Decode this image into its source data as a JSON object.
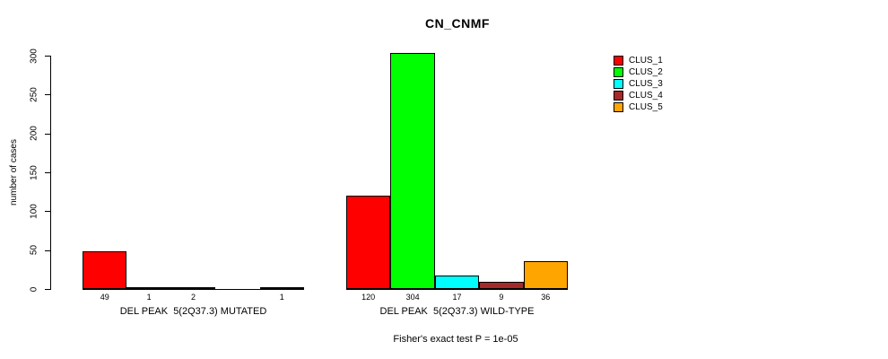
{
  "title": "CN_CNMF",
  "y_axis": {
    "label": "number of cases",
    "ticks": [
      0,
      50,
      100,
      150,
      200,
      250,
      300
    ]
  },
  "footer": "Fisher's exact test P = 1e-05",
  "legend": {
    "entries": [
      {
        "label": "CLUS_1",
        "color": "#ff0000"
      },
      {
        "label": "CLUS_2",
        "color": "#00ff00"
      },
      {
        "label": "CLUS_3",
        "color": "#00ffff"
      },
      {
        "label": "CLUS_4",
        "color": "#a52a2a"
      },
      {
        "label": "CLUS_5",
        "color": "#ffa500"
      }
    ]
  },
  "chart_data": {
    "type": "bar",
    "title": "CN_CNMF",
    "ylabel": "number of cases",
    "ylim": [
      0,
      300
    ],
    "yticks": [
      0,
      50,
      100,
      150,
      200,
      250,
      300
    ],
    "grid": false,
    "legend_position": "right",
    "series_names": [
      "CLUS_1",
      "CLUS_2",
      "CLUS_3",
      "CLUS_4",
      "CLUS_5"
    ],
    "series_colors": [
      "#ff0000",
      "#00ff00",
      "#00ffff",
      "#a52a2a",
      "#ffa500"
    ],
    "groups": [
      {
        "label": "DEL PEAK  5(2Q37.3) MUTATED",
        "values": [
          49,
          1,
          2,
          0,
          1
        ],
        "count_labels": [
          "49",
          "1",
          "2",
          "",
          "1"
        ]
      },
      {
        "label": "DEL PEAK  5(2Q37.3) WILD-TYPE",
        "values": [
          120,
          304,
          17,
          9,
          36
        ],
        "count_labels": [
          "120",
          "304",
          "17",
          "9",
          "36"
        ]
      }
    ],
    "annotation": "Fisher's exact test P = 1e-05"
  }
}
